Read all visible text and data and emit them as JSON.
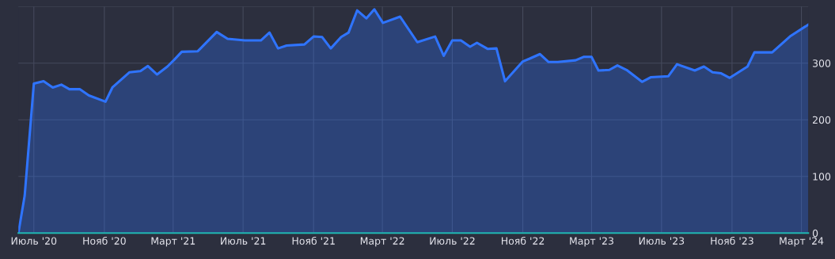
{
  "chart_data": {
    "type": "area",
    "x": [
      "2020-06-04",
      "2020-06-15",
      "2020-07-01",
      "2020-07-18",
      "2020-08-03",
      "2020-08-18",
      "2020-09-01",
      "2020-09-19",
      "2020-10-05",
      "2020-11-03",
      "2020-11-15",
      "2020-12-15",
      "2021-01-03",
      "2021-01-16",
      "2021-02-01",
      "2021-02-19",
      "2021-03-03",
      "2021-03-16",
      "2021-04-13",
      "2021-05-16",
      "2021-06-04",
      "2021-07-04",
      "2021-08-01",
      "2021-08-16",
      "2021-08-31",
      "2021-09-15",
      "2021-10-16",
      "2021-11-01",
      "2021-11-16",
      "2021-12-01",
      "2021-12-19",
      "2022-01-01",
      "2022-01-16",
      "2022-02-01",
      "2022-02-15",
      "2022-03-02",
      "2022-04-01",
      "2022-05-01",
      "2022-06-01",
      "2022-06-16",
      "2022-07-01",
      "2022-07-16",
      "2022-08-01",
      "2022-08-13",
      "2022-09-01",
      "2022-09-16",
      "2022-10-01",
      "2022-11-01",
      "2022-11-13",
      "2022-12-01",
      "2022-12-16",
      "2023-01-01",
      "2023-02-01",
      "2023-02-15",
      "2023-03-01",
      "2023-03-13",
      "2023-04-01",
      "2023-04-15",
      "2023-05-01",
      "2023-05-28",
      "2023-06-12",
      "2023-07-13",
      "2023-07-28",
      "2023-08-28",
      "2023-09-13",
      "2023-09-28",
      "2023-10-13",
      "2023-10-28",
      "2023-11-28",
      "2023-12-10",
      "2024-01-10",
      "2024-02-10",
      "2024-03-13"
    ],
    "series": [
      {
        "color": "#2f74ff",
        "values": [
          0,
          66,
          264,
          268,
          257,
          262,
          254,
          254,
          243,
          232,
          257,
          284,
          286,
          295,
          280,
          294,
          306,
          320,
          321,
          355,
          343,
          340,
          340,
          354,
          326,
          331,
          333,
          347,
          346,
          326,
          346,
          354,
          393,
          379,
          395,
          371,
          382,
          337,
          347,
          313,
          340,
          340,
          329,
          336,
          325,
          326,
          268,
          303,
          308,
          316,
          302,
          302,
          305,
          311,
          311,
          287,
          288,
          296,
          288,
          267,
          275,
          277,
          298,
          287,
          294,
          284,
          282,
          274,
          294,
          319,
          319,
          347,
          368
        ]
      }
    ],
    "xlim": [
      "2020-06-04",
      "2024-03-13"
    ],
    "xticks": [
      {
        "value": "2020-07-01",
        "label": "Июль '20"
      },
      {
        "value": "2020-11-01",
        "label": "Нояб '20"
      },
      {
        "value": "2021-03-01",
        "label": "Март '21"
      },
      {
        "value": "2021-07-01",
        "label": "Июль '21"
      },
      {
        "value": "2021-11-01",
        "label": "Нояб '21"
      },
      {
        "value": "2022-03-01",
        "label": "Март '22"
      },
      {
        "value": "2022-07-01",
        "label": "Июль '22"
      },
      {
        "value": "2022-11-01",
        "label": "Нояб '22"
      },
      {
        "value": "2023-03-01",
        "label": "Март '23"
      },
      {
        "value": "2023-07-01",
        "label": "Июль '23"
      },
      {
        "value": "2023-11-01",
        "label": "Нояб '23"
      },
      {
        "value": "2024-03-01",
        "label": "Март '24"
      }
    ],
    "ylim": [
      0,
      400
    ],
    "yticks": [
      0,
      100,
      200,
      300,
      {
        "value": 400,
        "label": null
      }
    ],
    "grid": true,
    "marker": "none",
    "line_style": "solid"
  }
}
